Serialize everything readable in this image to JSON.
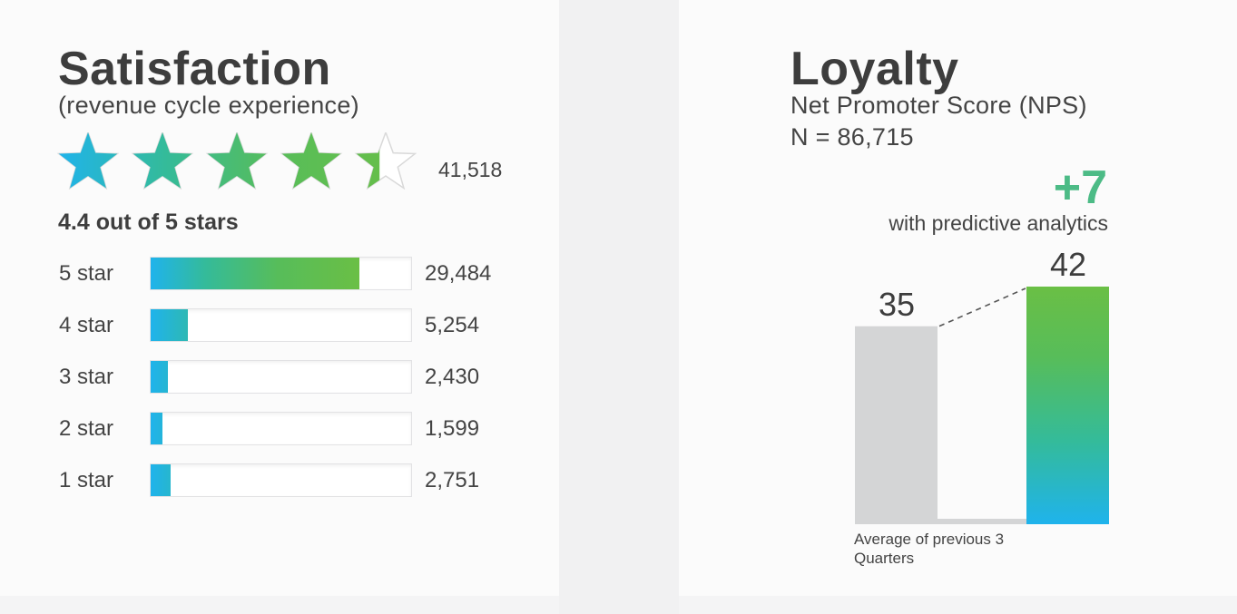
{
  "satisfaction": {
    "title": "Satisfaction",
    "subtitle": "(revenue cycle experience)",
    "total_reviews": "41,518",
    "rating_value": 4.4,
    "rating_max": 5,
    "rating_text": "4.4 out of 5 stars",
    "star_icon": "star-icon",
    "gradient_colors": [
      "#1fb3ec",
      "#34bb9a",
      "#57bd5a",
      "#6abf45"
    ]
  },
  "loyalty": {
    "title": "Loyalty",
    "subtitle": "Net Promoter Score (NPS)",
    "n_label": "N = 86,715",
    "delta": "+7",
    "delta_label": "with predictive analytics",
    "delta_color": "#4cbb86"
  },
  "chart_data": [
    {
      "type": "bar",
      "orientation": "horizontal",
      "categories": [
        "5 star",
        "4 star",
        "3 star",
        "2 star",
        "1 star"
      ],
      "values": [
        29484,
        5254,
        2430,
        1599,
        2751
      ],
      "value_labels": [
        "29,484",
        "5,254",
        "2,430",
        "1,599",
        "2,751"
      ],
      "xlim": [
        0,
        37000
      ],
      "grid": false
    },
    {
      "type": "bar",
      "categories": [
        "Average of previous 3 Quarters",
        ""
      ],
      "values": [
        35,
        42
      ],
      "value_labels": [
        "35",
        "42"
      ],
      "ylim": [
        0,
        42
      ],
      "colors": [
        "#d4d5d6",
        "#6abf45"
      ],
      "grid": false
    }
  ]
}
